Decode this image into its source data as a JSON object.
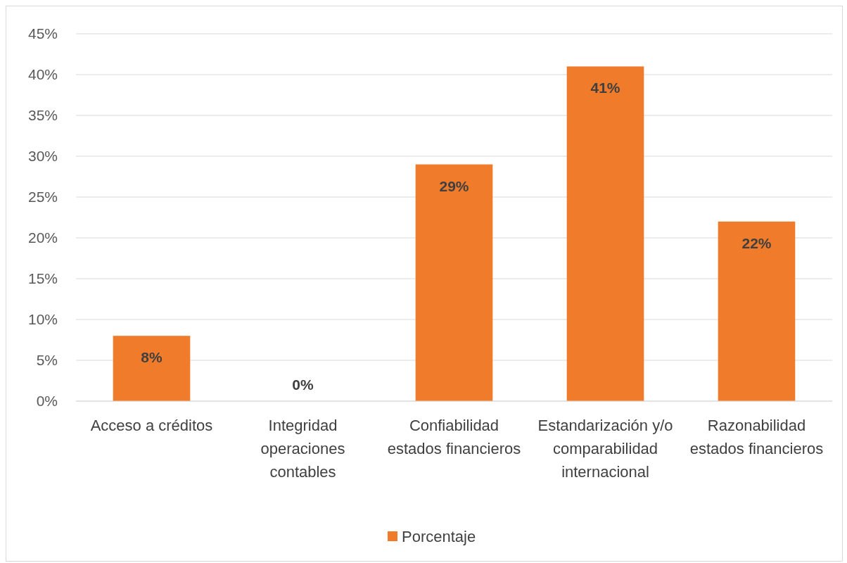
{
  "chart_data": {
    "type": "bar",
    "categories": [
      "Acceso a créditos",
      "Integridad operaciones contables",
      "Confiabilidad estados financieros",
      "Estandarización y/o comparabilidad internacional",
      "Razonabilidad estados financieros"
    ],
    "series": [
      {
        "name": "Porcentaje",
        "color": "#f07b2b",
        "values": [
          8,
          0,
          29,
          41,
          22
        ]
      }
    ],
    "ylim": [
      0,
      45
    ],
    "yticks": [
      {
        "value": 0,
        "label": "0%"
      },
      {
        "value": 5,
        "label": "5%"
      },
      {
        "value": 10,
        "label": "10%"
      },
      {
        "value": 15,
        "label": "15%"
      },
      {
        "value": 20,
        "label": "20%"
      },
      {
        "value": 25,
        "label": "25%"
      },
      {
        "value": 30,
        "label": "30%"
      },
      {
        "value": 35,
        "label": "35%"
      },
      {
        "value": 40,
        "label": "40%"
      },
      {
        "value": 45,
        "label": "45%"
      }
    ],
    "value_labels": [
      "8%",
      "0%",
      "29%",
      "41%",
      "22%"
    ],
    "grid": "y",
    "legend": "bottom"
  }
}
